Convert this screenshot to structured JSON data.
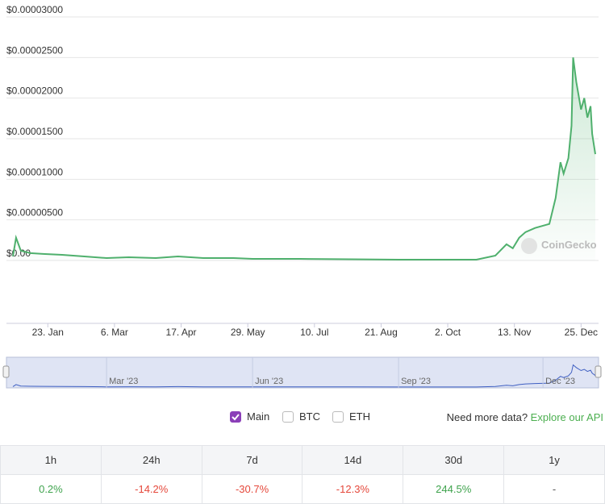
{
  "chart_data": {
    "type": "line",
    "x": [
      "2023-01-01",
      "2023-01-03",
      "2023-01-06",
      "2023-01-12",
      "2023-01-20",
      "2023-02-01",
      "2023-02-15",
      "2023-03-01",
      "2023-03-15",
      "2023-04-01",
      "2023-04-15",
      "2023-05-01",
      "2023-05-20",
      "2023-06-01",
      "2023-07-01",
      "2023-08-01",
      "2023-09-01",
      "2023-10-01",
      "2023-10-20",
      "2023-11-01",
      "2023-11-08",
      "2023-11-12",
      "2023-11-16",
      "2023-11-20",
      "2023-11-26",
      "2023-12-05",
      "2023-12-09",
      "2023-12-12",
      "2023-12-14",
      "2023-12-17",
      "2023-12-19",
      "2023-12-20",
      "2023-12-22",
      "2023-12-25",
      "2023-12-27",
      "2023-12-29",
      "2023-12-31",
      "2024-01-01",
      "2024-01-03"
    ],
    "values": [
      5e-07,
      2.8e-06,
      1.2e-06,
      9e-07,
      8e-07,
      7e-07,
      5e-07,
      3e-07,
      4e-07,
      3e-07,
      5e-07,
      3e-07,
      3e-07,
      2e-07,
      2e-07,
      1.5e-07,
      1e-07,
      1e-07,
      1e-07,
      6e-07,
      2e-06,
      1.5e-06,
      2.8e-06,
      3.5e-06,
      4e-06,
      4.5e-06,
      7.7e-06,
      1.21e-05,
      1.07e-05,
      1.26e-05,
      1.66e-05,
      2.5e-05,
      2.2e-05,
      1.86e-05,
      2e-05,
      1.76e-05,
      1.9e-05,
      1.56e-05,
      1.31e-05
    ],
    "color": "#4fb06d",
    "xlim": [
      "2023-01-01",
      "2024-01-04"
    ],
    "xticks": [
      {
        "value": "2023-01-23",
        "label": "23. Jan"
      },
      {
        "value": "2023-03-06",
        "label": "6. Mar"
      },
      {
        "value": "2023-04-17",
        "label": "17. Apr"
      },
      {
        "value": "2023-05-29",
        "label": "29. May"
      },
      {
        "value": "2023-07-10",
        "label": "10. Jul"
      },
      {
        "value": "2023-08-21",
        "label": "21. Aug"
      },
      {
        "value": "2023-10-02",
        "label": "2. Oct"
      },
      {
        "value": "2023-11-13",
        "label": "13. Nov"
      },
      {
        "value": "2023-12-25",
        "label": "25. Dec"
      }
    ],
    "ylim": [
      0,
      3e-05
    ],
    "yticks": [
      {
        "value": 0,
        "label": "$0.00"
      },
      {
        "value": 5e-06,
        "label": "$0.00000500"
      },
      {
        "value": 1e-05,
        "label": "$0.00001000"
      },
      {
        "value": 1.5e-05,
        "label": "$0.00001500"
      },
      {
        "value": 2e-05,
        "label": "$0.00002000"
      },
      {
        "value": 2.5e-05,
        "label": "$0.00002500"
      },
      {
        "value": 3e-05,
        "label": "$0.00003000"
      }
    ],
    "grid": true,
    "watermark": "CoinGecko",
    "navigator_ticks": [
      {
        "value": "2023-03-01",
        "label": "Mar '23"
      },
      {
        "value": "2023-06-01",
        "label": "Jun '23"
      },
      {
        "value": "2023-09-01",
        "label": "Sep '23"
      },
      {
        "value": "2023-12-01",
        "label": "Dec '23"
      }
    ]
  },
  "controls": {
    "options": [
      {
        "label": "Main",
        "checked": true
      },
      {
        "label": "BTC",
        "checked": false
      },
      {
        "label": "ETH",
        "checked": false
      }
    ],
    "prompt": "Need more data?",
    "link": "Explore our API"
  },
  "table": {
    "headers": [
      "1h",
      "24h",
      "7d",
      "14d",
      "30d",
      "1y"
    ],
    "rows": [
      [
        "0.2%",
        "-14.2%",
        "-30.7%",
        "-12.3%",
        "244.5%",
        "-"
      ]
    ]
  }
}
